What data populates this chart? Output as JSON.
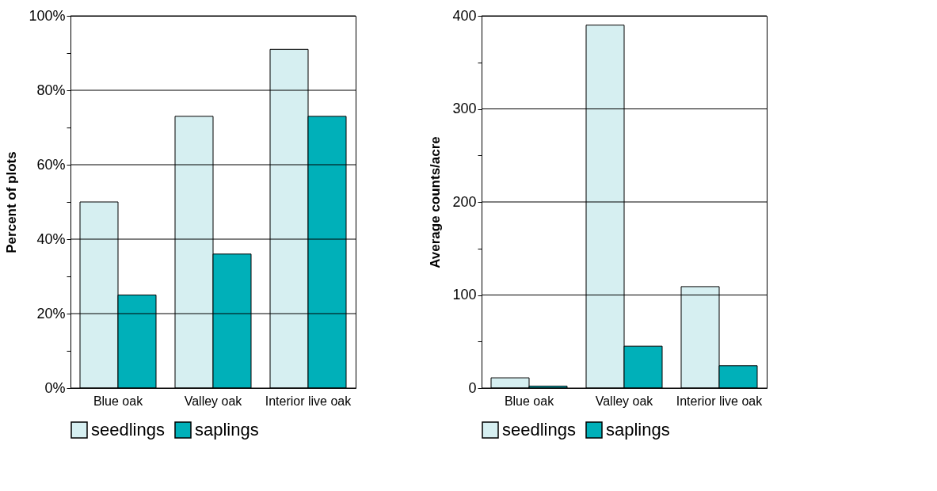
{
  "chart_data": [
    {
      "type": "bar",
      "ylabel": "Percent of plots",
      "categories": [
        "Blue oak",
        "Valley oak",
        "Interior live oak"
      ],
      "series": [
        {
          "name": "seedlings",
          "color": "#d6eff1",
          "values": [
            50,
            73,
            91
          ]
        },
        {
          "name": "saplings",
          "color": "#00b0b9",
          "values": [
            25,
            36,
            73
          ]
        }
      ],
      "ylim": [
        0,
        100
      ],
      "yticks": [
        {
          "value": 0,
          "label": "0%"
        },
        {
          "value": 10,
          "label": null
        },
        {
          "value": 20,
          "label": "20%"
        },
        {
          "value": 30,
          "label": null
        },
        {
          "value": 40,
          "label": "40%"
        },
        {
          "value": 50,
          "label": null
        },
        {
          "value": 60,
          "label": "60%"
        },
        {
          "value": 70,
          "label": null
        },
        {
          "value": 80,
          "label": "80%"
        },
        {
          "value": 90,
          "label": null
        },
        {
          "value": 100,
          "label": "100%"
        }
      ],
      "grid": "y",
      "legend": "bottom"
    },
    {
      "type": "bar",
      "ylabel": "Average counts/acre",
      "categories": [
        "Blue oak",
        "Valley oak",
        "Interior live oak"
      ],
      "series": [
        {
          "name": "seedlings",
          "color": "#d6eff1",
          "values": [
            11,
            390,
            109
          ]
        },
        {
          "name": "saplings",
          "color": "#00b0b9",
          "values": [
            2,
            45,
            24
          ]
        }
      ],
      "ylim": [
        0,
        400
      ],
      "yticks": [
        0,
        {
          "value": 50,
          "label": null
        },
        100,
        {
          "value": 150,
          "label": null
        },
        200,
        {
          "value": 250,
          "label": null
        },
        300,
        {
          "value": 350,
          "label": null
        },
        400
      ],
      "grid": "y",
      "legend": "bottom"
    }
  ]
}
